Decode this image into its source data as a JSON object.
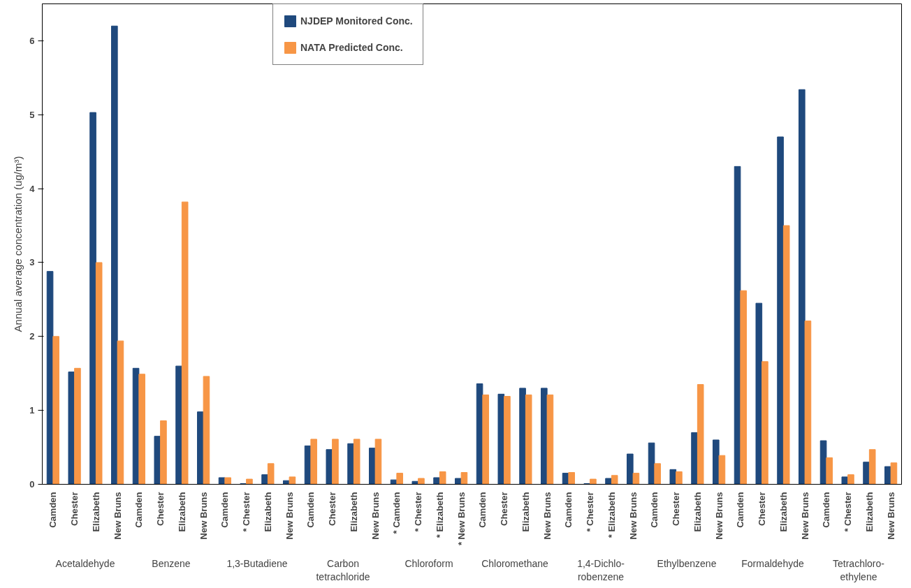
{
  "chart_data": {
    "type": "bar",
    "ylabel": "Annual average concentration (ug/m³)",
    "categories": [
      "Camden",
      "Chester",
      "Elizabeth",
      "New Bruns",
      "Camden",
      "Chester",
      "Elizabeth",
      "New Bruns",
      "Camden",
      "* Chester",
      "Elizabeth",
      "New Bruns",
      "Camden",
      "Chester",
      "Elizabeth",
      "New Bruns",
      "* Camden",
      "* Chester",
      "* Elizabeth",
      "* New Bruns",
      "Camden",
      "Chester",
      "Elizabeth",
      "New Bruns",
      "Camden",
      "* Chester",
      "* Elizabeth",
      "New Bruns",
      "Camden",
      "Chester",
      "Elizabeth",
      "New Bruns",
      "Camden",
      "Chester",
      "Elizabeth",
      "New Bruns",
      "Camden",
      "* Chester",
      "Elizabeth",
      "New Bruns"
    ],
    "series": [
      {
        "name": "NJDEP Monitored Conc.",
        "color": "#1f497d",
        "values": [
          2.88,
          1.52,
          5.03,
          6.2,
          1.57,
          0.65,
          1.6,
          0.98,
          0.09,
          0.01,
          0.13,
          0.05,
          0.52,
          0.47,
          0.55,
          0.49,
          0.06,
          0.04,
          0.09,
          0.08,
          1.36,
          1.22,
          1.3,
          1.3,
          0.15,
          0.01,
          0.08,
          0.41,
          0.56,
          0.2,
          0.7,
          0.6,
          4.3,
          2.45,
          4.7,
          5.34,
          0.59,
          0.1,
          0.3,
          0.24
        ]
      },
      {
        "name": "NATA Predicted Conc.",
        "color": "#f79646",
        "values": [
          2.0,
          1.57,
          3.0,
          1.94,
          1.49,
          0.86,
          3.82,
          1.46,
          0.09,
          0.07,
          0.28,
          0.1,
          0.61,
          0.61,
          0.61,
          0.61,
          0.15,
          0.08,
          0.17,
          0.16,
          1.21,
          1.19,
          1.21,
          1.21,
          0.16,
          0.07,
          0.12,
          0.15,
          0.28,
          0.17,
          1.35,
          0.39,
          2.62,
          1.66,
          3.5,
          2.21,
          0.36,
          0.13,
          0.47,
          0.29
        ]
      }
    ],
    "annotations": [
      "Acetaldehyde",
      "Benzene",
      "1,3-Butadiene",
      "Carbon\ntetrachloride",
      "Chloroform",
      "Chloromethane",
      "1,4-Dichlo-\nrobenzene",
      "Ethylbenzene",
      "Formaldehyde",
      "Tetrachloro-\nethylene"
    ],
    "ylim": [
      0,
      6.5
    ],
    "yticks": [
      0,
      1,
      2,
      3,
      4,
      5,
      6
    ],
    "grid": false,
    "legend": "top"
  }
}
